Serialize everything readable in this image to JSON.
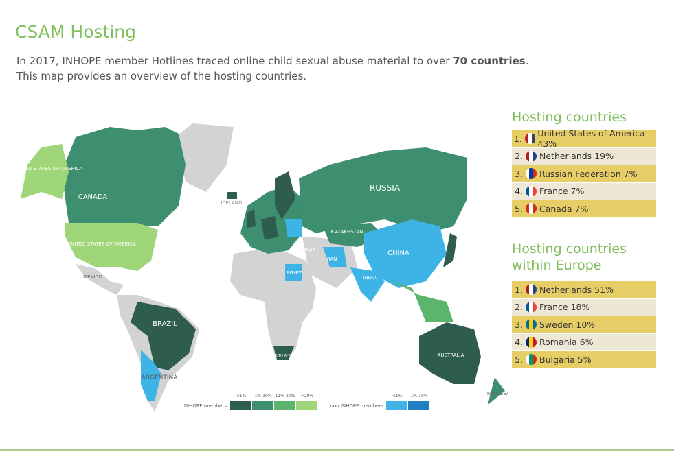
{
  "header": {
    "title": "CSAM Hosting",
    "subtitle_line1_start": "In 2017, INHOPE member Hotlines traced online child sexual abuse material to over",
    "subtitle_line1_bold": "70 countries",
    "subtitle_line1_end": ".",
    "subtitle_line2": "This map provides an overview of the hosting countries."
  },
  "map": {
    "labels": [
      "CANADA",
      "UNITED STATES OF AMERICA",
      "UNITED STATES OF AMERICA",
      "MEXICO",
      "BRAZIL",
      "ARGENTINA",
      "RUSSIA",
      "CHINA",
      "INDIA",
      "KAZAKHSTAN",
      "IRAN",
      "TURKEY",
      "EGYPT",
      "ICELAND",
      "SOUTH AFRICA",
      "AUSTRALIA",
      "NEW ZEALAND"
    ]
  },
  "legend": {
    "members_title": "INHOPE members",
    "members_ranges": [
      "<1%",
      "1%-10%",
      "11%-20%",
      ">20%"
    ],
    "non_members_title": "non INHOPE members",
    "non_members_ranges": [
      "<1%",
      "1%-10%"
    ]
  },
  "hosting": {
    "title": "Hosting countries",
    "items": [
      {
        "rank": "1.",
        "label": "United States of America 43%"
      },
      {
        "rank": "2.",
        "label": "Netherlands 19%"
      },
      {
        "rank": "3.",
        "label": "Russian Federation 7%"
      },
      {
        "rank": "4.",
        "label": "France 7%"
      },
      {
        "rank": "5.",
        "label": "Canada 7%"
      }
    ]
  },
  "europe": {
    "title_line1": "Hosting countries",
    "title_line2": "within Europe",
    "items": [
      {
        "rank": "1.",
        "label": "Netherlands 51%"
      },
      {
        "rank": "2.",
        "label": "France 18%"
      },
      {
        "rank": "3.",
        "label": "Sweden 10%"
      },
      {
        "rank": "4.",
        "label": "Romania 6%"
      },
      {
        "rank": "5.",
        "label": "Bulgaria 5%"
      }
    ]
  }
}
